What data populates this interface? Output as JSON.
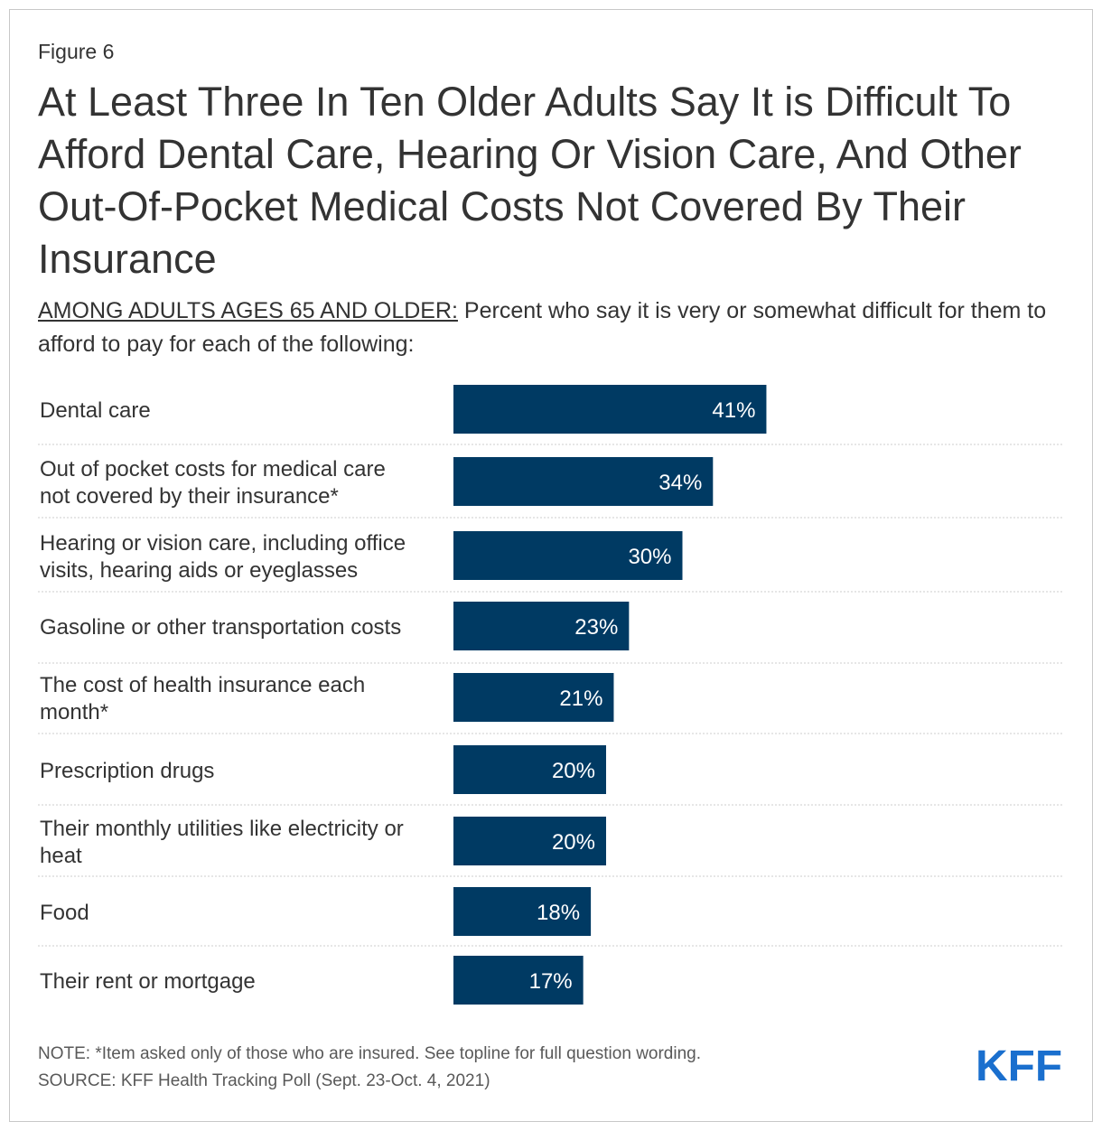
{
  "figure_label": "Figure 6",
  "title": "At Least Three In Ten Older Adults Say It is Difficult To Afford Dental Care, Hearing Or Vision Care, And Other Out-Of-Pocket Medical Costs Not Covered By Their Insurance",
  "subtitle": {
    "lead": "AMONG ADULTS AGES 65 AND OLDER:",
    "text": " Percent who say it is very or somewhat difficult for them to afford to pay for each of the following:"
  },
  "colors": {
    "bar": "#003a63",
    "bar_label": "#ffffff",
    "logo": "#1a6fce",
    "divider": "#cccccc"
  },
  "chart_data": {
    "type": "bar",
    "orientation": "horizontal",
    "title": "At Least Three In Ten Older Adults Say It is Difficult To Afford Dental Care, Hearing Or Vision Care, And Other Out-Of-Pocket Medical Costs Not Covered By Their Insurance",
    "xlabel": "",
    "ylabel": "",
    "xlim": [
      0,
      100
    ],
    "grid": false,
    "legend": "none",
    "value_suffix": "%",
    "categories": [
      [
        "Dental care"
      ],
      [
        "Out of pocket costs for medical care",
        "not covered by their insurance*"
      ],
      [
        "Hearing or vision care, including office",
        "visits, hearing aids or eyeglasses"
      ],
      [
        "Gasoline or other transportation costs"
      ],
      [
        "The cost of health insurance each",
        "month*"
      ],
      [
        "Prescription drugs"
      ],
      [
        "Their monthly utilities like electricity or",
        "heat"
      ],
      [
        "Food"
      ],
      [
        "Their rent or mortgage"
      ]
    ],
    "values": [
      41,
      34,
      30,
      23,
      21,
      20,
      20,
      18,
      17
    ]
  },
  "footer": {
    "note": "NOTE: *Item asked only of those who are insured. See topline for full question wording.",
    "source": "SOURCE: KFF Health Tracking Poll (Sept. 23-Oct. 4, 2021)"
  },
  "logo_text": "KFF"
}
